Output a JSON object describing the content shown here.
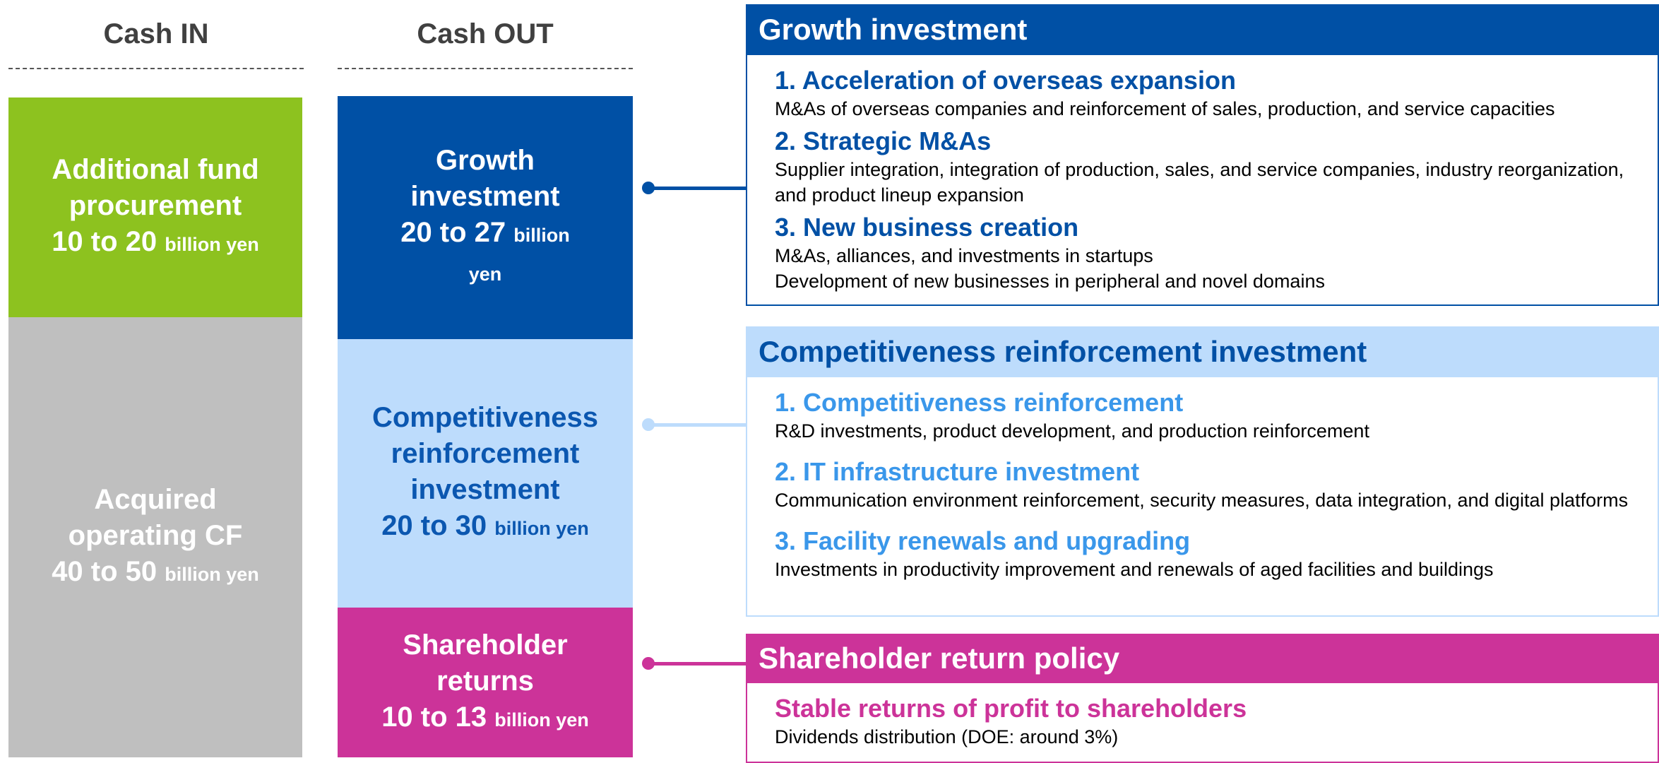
{
  "cash_in": {
    "title": "Cash IN",
    "items": [
      {
        "label": "Additional fund procurement",
        "amount": "10 to 20",
        "unit": "billion yen"
      },
      {
        "label": "Acquired operating CF",
        "amount": "40 to 50",
        "unit": "billion yen"
      }
    ]
  },
  "cash_out": {
    "title": "Cash OUT",
    "items": [
      {
        "label": "Growth investment",
        "amount": "20 to 27",
        "unit": "billion yen"
      },
      {
        "label": "Competitiveness reinforcement investment",
        "amount": "20 to 30",
        "unit": "billion yen"
      },
      {
        "label": "Shareholder returns",
        "amount": "10 to 13",
        "unit": "billion yen"
      }
    ]
  },
  "sections": [
    {
      "title": "Growth investment",
      "items": [
        {
          "heading": "1. Acceleration of overseas expansion",
          "lines": [
            "M&As of overseas companies and reinforcement of sales, production, and service capacities"
          ]
        },
        {
          "heading": "2. Strategic M&As",
          "lines": [
            "Supplier integration, integration of production, sales, and service companies, industry reorganization, and product lineup expansion"
          ]
        },
        {
          "heading": "3. New business creation",
          "lines": [
            "M&As, alliances, and investments in startups",
            "Development of new businesses in peripheral and novel domains"
          ]
        }
      ]
    },
    {
      "title": "Competitiveness reinforcement investment",
      "items": [
        {
          "heading": "1. Competitiveness reinforcement",
          "lines": [
            "R&D investments, product development, and production reinforcement"
          ]
        },
        {
          "heading": "2. IT infrastructure investment",
          "lines": [
            "Communication environment reinforcement, security measures, data integration, and digital platforms"
          ]
        },
        {
          "heading": "3. Facility renewals and upgrading",
          "lines": [
            "Investments in productivity improvement and renewals of aged facilities and buildings"
          ]
        }
      ]
    },
    {
      "title": "Shareholder return policy",
      "items": [
        {
          "heading": "Stable returns of profit to shareholders",
          "lines": [
            "Dividends distribution (DOE: around 3%)"
          ]
        }
      ]
    }
  ]
}
